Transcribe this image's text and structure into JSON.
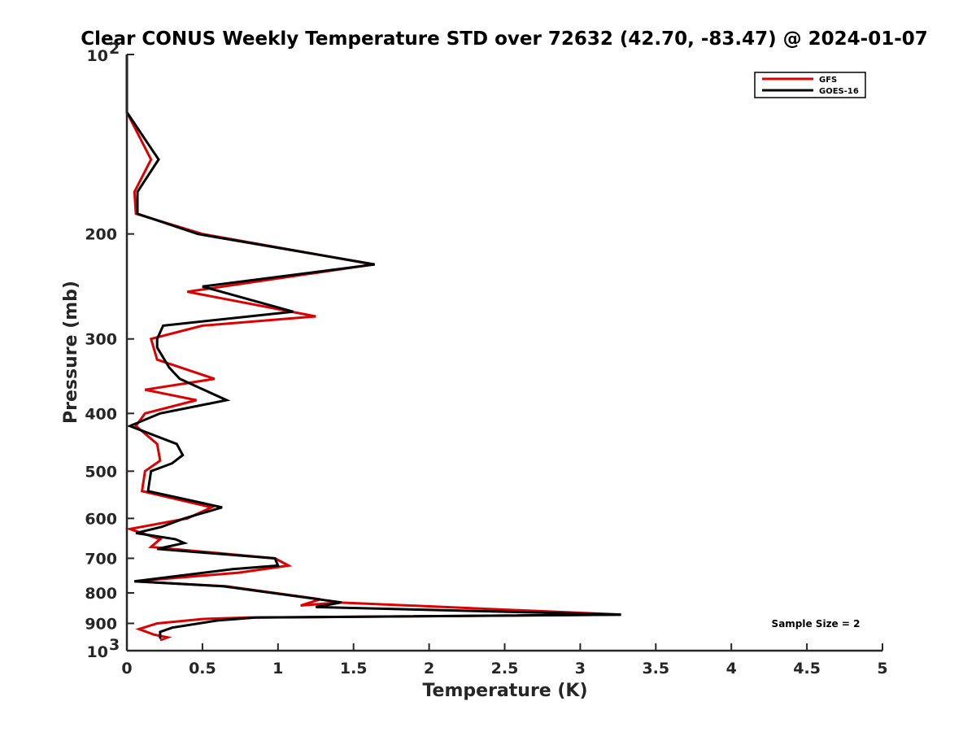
{
  "chart_data": {
    "type": "line",
    "title": "Clear CONUS Weekly Temperature STD over 72632 (42.70, -83.47) @ 2024-01-07",
    "xlabel": "Temperature (K)",
    "ylabel": "Pressure (mb)",
    "xlim": [
      0,
      5
    ],
    "ylim": [
      100,
      1000
    ],
    "y_scale": "log",
    "y_direction": "reversed",
    "grid": false,
    "legend_position": "top-right",
    "x_ticks": [
      "0",
      "0.5",
      "1",
      "1.5",
      "2",
      "2.5",
      "3",
      "3.5",
      "4",
      "4.5",
      "5"
    ],
    "y_ticks": [
      {
        "value": 100,
        "base": "10",
        "exp": "2"
      },
      {
        "value": 200,
        "label": "200"
      },
      {
        "value": 300,
        "label": "300"
      },
      {
        "value": 400,
        "label": "400"
      },
      {
        "value": 500,
        "label": "500"
      },
      {
        "value": 600,
        "label": "600"
      },
      {
        "value": 700,
        "label": "700"
      },
      {
        "value": 800,
        "label": "800"
      },
      {
        "value": 900,
        "label": "900"
      },
      {
        "value": 1000,
        "base": "10",
        "exp": "3"
      }
    ],
    "annotation": "Sample Size = 2",
    "series": [
      {
        "name": "GFS",
        "color": "#dd0000",
        "points": [
          [
            0,
            100
          ],
          [
            0,
            125
          ],
          [
            0.16,
            150
          ],
          [
            0.05,
            170
          ],
          [
            0.06,
            185
          ],
          [
            0.5,
            200
          ],
          [
            1.63,
            225
          ],
          [
            0.4,
            250
          ],
          [
            1.25,
            275
          ],
          [
            0.5,
            285
          ],
          [
            0.16,
            300
          ],
          [
            0.2,
            325
          ],
          [
            0.58,
            350
          ],
          [
            0.12,
            365
          ],
          [
            0.46,
            380
          ],
          [
            0.12,
            400
          ],
          [
            0.06,
            420
          ],
          [
            0.2,
            450
          ],
          [
            0.22,
            480
          ],
          [
            0.12,
            500
          ],
          [
            0.1,
            540
          ],
          [
            0.56,
            575
          ],
          [
            0.4,
            600
          ],
          [
            0.02,
            625
          ],
          [
            0.22,
            650
          ],
          [
            0.16,
            670
          ],
          [
            0.98,
            700
          ],
          [
            1.07,
            720
          ],
          [
            0.74,
            740
          ],
          [
            0.05,
            765
          ],
          [
            0.66,
            780
          ],
          [
            1.28,
            820
          ],
          [
            1.15,
            840
          ],
          [
            1.4,
            830
          ],
          [
            3.27,
            870
          ],
          [
            0.8,
            880
          ],
          [
            0.5,
            885
          ],
          [
            0.2,
            900
          ],
          [
            0.08,
            920
          ],
          [
            0.18,
            940
          ],
          [
            0.27,
            950
          ],
          [
            0.22,
            960
          ]
        ]
      },
      {
        "name": "GOES-16",
        "color": "#000000",
        "points": [
          [
            0,
            100
          ],
          [
            0,
            125
          ],
          [
            0.21,
            150
          ],
          [
            0.07,
            170
          ],
          [
            0.07,
            185
          ],
          [
            0.47,
            200
          ],
          [
            1.64,
            225
          ],
          [
            0.5,
            245
          ],
          [
            1.1,
            270
          ],
          [
            0.24,
            285
          ],
          [
            0.2,
            300
          ],
          [
            0.2,
            310
          ],
          [
            0.28,
            335
          ],
          [
            0.35,
            350
          ],
          [
            0.66,
            380
          ],
          [
            0.22,
            400
          ],
          [
            0.02,
            420
          ],
          [
            0.33,
            450
          ],
          [
            0.37,
            470
          ],
          [
            0.3,
            485
          ],
          [
            0.16,
            500
          ],
          [
            0.14,
            540
          ],
          [
            0.63,
            575
          ],
          [
            0.38,
            600
          ],
          [
            0.23,
            620
          ],
          [
            0.06,
            635
          ],
          [
            0.32,
            650
          ],
          [
            0.38,
            660
          ],
          [
            0.2,
            675
          ],
          [
            0.98,
            700
          ],
          [
            1.0,
            720
          ],
          [
            0.7,
            730
          ],
          [
            0.05,
            765
          ],
          [
            0.64,
            780
          ],
          [
            1.42,
            830
          ],
          [
            1.25,
            845
          ],
          [
            3.27,
            870
          ],
          [
            0.85,
            880
          ],
          [
            0.6,
            890
          ],
          [
            0.3,
            915
          ],
          [
            0.22,
            930
          ],
          [
            0.22,
            955
          ]
        ]
      }
    ]
  }
}
